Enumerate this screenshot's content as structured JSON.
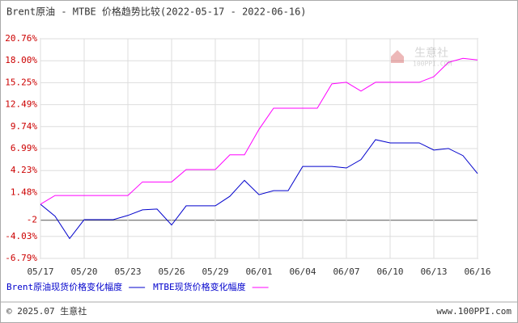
{
  "chart_data": {
    "type": "line",
    "title": "Brent原油 - MTBE 价格趋势比较(2022-05-17 - 2022-06-16)",
    "categories": [
      "05/17",
      null,
      null,
      "05/20",
      null,
      null,
      "05/23",
      null,
      null,
      "05/26",
      null,
      null,
      "05/29",
      null,
      null,
      "06/01",
      null,
      null,
      "06/04",
      null,
      null,
      "06/07",
      null,
      null,
      "06/10",
      null,
      null,
      "06/13",
      null,
      null,
      "06/16"
    ],
    "series": [
      {
        "name": "Brent原油现货价格变化幅度",
        "color": "#0000cc",
        "values": [
          0,
          -1.5,
          -4.3,
          -1.93,
          -1.93,
          -1.93,
          -1.4,
          -0.7,
          -0.6,
          -2.6,
          -0.2,
          -0.2,
          -0.2,
          1.0,
          3.0,
          1.2,
          1.7,
          1.7,
          4.75,
          4.75,
          4.75,
          4.55,
          5.6,
          8.1,
          7.7,
          7.7,
          7.7,
          6.8,
          7.0,
          6.1,
          3.85
        ]
      },
      {
        "name": "MTBE现货价格变化幅度",
        "color": "#ff00ff",
        "values": [
          0,
          1.1,
          1.1,
          1.1,
          1.1,
          1.1,
          1.1,
          2.8,
          2.8,
          2.8,
          4.35,
          4.35,
          4.35,
          6.2,
          6.2,
          9.4,
          12.05,
          12.05,
          12.05,
          12.05,
          15.1,
          15.3,
          14.2,
          15.3,
          15.3,
          15.3,
          15.3,
          16.0,
          17.8,
          18.3,
          18.1
        ]
      }
    ],
    "ylim": [
      -6.79,
      20.76
    ],
    "yticks": [
      {
        "value": 20.76,
        "label": "20.76%"
      },
      {
        "value": 18.0,
        "label": "18.00%"
      },
      {
        "value": 15.25,
        "label": "15.25%"
      },
      {
        "value": 12.49,
        "label": "12.49%"
      },
      {
        "value": 9.74,
        "label": "9.74%"
      },
      {
        "value": 6.99,
        "label": "6.99%"
      },
      {
        "value": 4.23,
        "label": "4.23%"
      },
      {
        "value": 1.48,
        "label": "1.48%"
      },
      -2,
      {
        "value": -4.03,
        "label": "-4.03%"
      },
      {
        "value": -6.79,
        "label": "-6.79%"
      }
    ],
    "grid": true,
    "watermark": [
      "生意社",
      "100PPI.COM"
    ],
    "footer": {
      "left": "© 2025.07 生意社",
      "right": "www.100PPI.com"
    }
  }
}
